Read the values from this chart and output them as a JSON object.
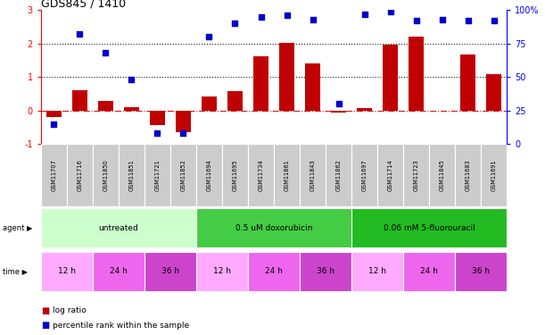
{
  "title": "GDS845 / 1410",
  "samples": [
    "GSM11707",
    "GSM11716",
    "GSM11850",
    "GSM11851",
    "GSM11721",
    "GSM11852",
    "GSM11694",
    "GSM11695",
    "GSM11734",
    "GSM11861",
    "GSM11843",
    "GSM11862",
    "GSM11697",
    "GSM11714",
    "GSM11723",
    "GSM11845",
    "GSM11683",
    "GSM11691"
  ],
  "log_ratio": [
    -0.18,
    0.6,
    0.28,
    0.1,
    -0.42,
    -0.65,
    0.42,
    0.58,
    1.62,
    2.02,
    1.42,
    -0.06,
    0.08,
    1.98,
    2.2,
    0.0,
    1.68,
    1.08
  ],
  "percentile_right": [
    15,
    82,
    68,
    48,
    8,
    8,
    80,
    90,
    95,
    96,
    93,
    30,
    97,
    99,
    92,
    93,
    92,
    92
  ],
  "bar_color": "#c00000",
  "scatter_color": "#0000cc",
  "agent_groups": [
    {
      "label": "untreated",
      "start": 0,
      "end": 6,
      "color": "#ccffcc"
    },
    {
      "label": "0.5 uM doxorubicin",
      "start": 6,
      "end": 12,
      "color": "#44cc44"
    },
    {
      "label": "0.06 mM 5-fluorouracil",
      "start": 12,
      "end": 18,
      "color": "#22bb22"
    }
  ],
  "time_groups": [
    {
      "label": "12 h",
      "start": 0,
      "end": 2,
      "color": "#ffaaff"
    },
    {
      "label": "24 h",
      "start": 2,
      "end": 4,
      "color": "#ee66ee"
    },
    {
      "label": "36 h",
      "start": 4,
      "end": 6,
      "color": "#cc44cc"
    },
    {
      "label": "12 h",
      "start": 6,
      "end": 8,
      "color": "#ffaaff"
    },
    {
      "label": "24 h",
      "start": 8,
      "end": 10,
      "color": "#ee66ee"
    },
    {
      "label": "36 h",
      "start": 10,
      "end": 12,
      "color": "#cc44cc"
    },
    {
      "label": "12 h",
      "start": 12,
      "end": 14,
      "color": "#ffaaff"
    },
    {
      "label": "24 h",
      "start": 14,
      "end": 16,
      "color": "#ee66ee"
    },
    {
      "label": "36 h",
      "start": 16,
      "end": 18,
      "color": "#cc44cc"
    }
  ],
  "ylim_left": [
    -1.0,
    3.0
  ],
  "ylim_right": [
    0,
    100
  ],
  "yticks_left": [
    -1,
    0,
    1,
    2,
    3
  ],
  "ytick_labels_left": [
    "-1",
    "0",
    "1",
    "2",
    "3"
  ],
  "yticks_right": [
    0,
    25,
    50,
    75,
    100
  ],
  "ytick_labels_right": [
    "0",
    "25",
    "50",
    "75",
    "100%"
  ],
  "hlines": [
    0.0,
    1.0,
    2.0
  ],
  "hline_styles": [
    "dashdot",
    "dotted",
    "dotted"
  ],
  "hline_colors": [
    "#cc0000",
    "#000000",
    "#000000"
  ],
  "sample_box_color": "#cccccc",
  "sample_box_edge": "#888888",
  "legend_items": [
    {
      "label": "log ratio",
      "color": "#c00000"
    },
    {
      "label": "percentile rank within the sample",
      "color": "#0000cc"
    }
  ],
  "bar_width": 0.6
}
